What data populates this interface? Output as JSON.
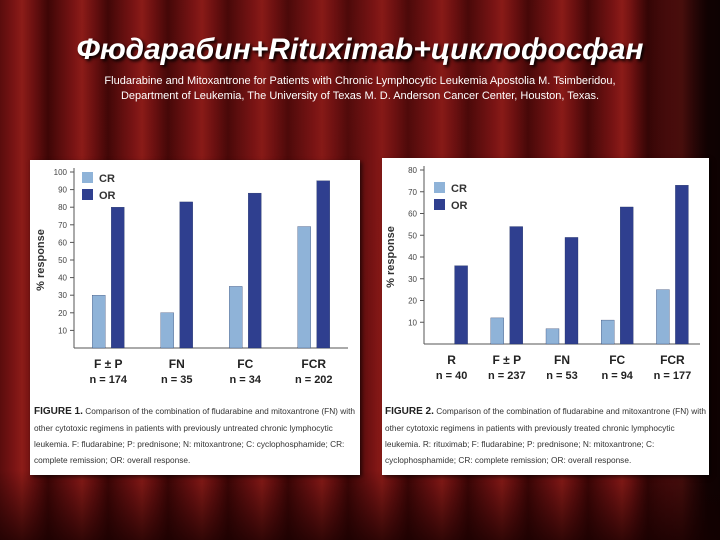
{
  "slide": {
    "title": "Фюдарабин+Rituximab+циклофосфан",
    "subtitle_line1": "Fludarabine and Mitoxantrone for Patients with Chronic Lymphocytic Leukemia Apostolia M. Tsimberidou,",
    "subtitle_line2": "Department of Leukemia, The University of Texas M. D. Anderson Cancer Center, Houston, Texas."
  },
  "figure1": {
    "caption_label": "FIGURE 1.",
    "caption_text": "Comparison of the combination of fludarabine and mitoxantrone (FN) with other cytotoxic regimens in patients with previously untreated chronic lymphocytic leukemia. F: fludarabine; P: prednisone; N: mitoxantrone; C: cyclophosphamide; CR: complete remission; OR: overall response."
  },
  "figure2": {
    "caption_label": "FIGURE 2.",
    "caption_text": "Comparison of the combination of fludarabine and mitoxantrone (FN) with other cytotoxic regimens in patients with previously treated chronic lymphocytic leukemia. R: rituximab; F: fludarabine; P: prednisone; N: mitoxantrone; C: cyclophosphamide; CR: complete remission; OR: overall response."
  },
  "colors": {
    "cr": "#8fb3d8",
    "or": "#2f3f8f",
    "axis": "#555555"
  },
  "chart_data": [
    {
      "type": "bar",
      "ylabel": "% response",
      "ylim": [
        0,
        100
      ],
      "yticks": [
        10,
        20,
        30,
        40,
        50,
        60,
        70,
        80,
        90,
        100
      ],
      "categories": [
        "F ± P",
        "FN",
        "FC",
        "FCR"
      ],
      "n_labels": [
        "n = 174",
        "n = 35",
        "n = 34",
        "n = 202"
      ],
      "legend_placement": "top-left",
      "series": [
        {
          "name": "CR",
          "values": [
            30,
            20,
            35,
            69
          ]
        },
        {
          "name": "OR",
          "values": [
            80,
            83,
            88,
            95
          ]
        }
      ]
    },
    {
      "type": "bar",
      "ylabel": "% response",
      "ylim": [
        0,
        80
      ],
      "yticks": [
        10,
        20,
        30,
        40,
        50,
        60,
        70,
        80
      ],
      "categories": [
        "R",
        "F ± P",
        "FN",
        "FC",
        "FCR"
      ],
      "n_labels": [
        "n = 40",
        "n = 237",
        "n = 53",
        "n = 94",
        "n = 177"
      ],
      "legend_placement": "top-left",
      "series": [
        {
          "name": "CR",
          "values": [
            0,
            12,
            7,
            11,
            25
          ]
        },
        {
          "name": "OR",
          "values": [
            36,
            54,
            49,
            63,
            73
          ]
        }
      ]
    }
  ]
}
